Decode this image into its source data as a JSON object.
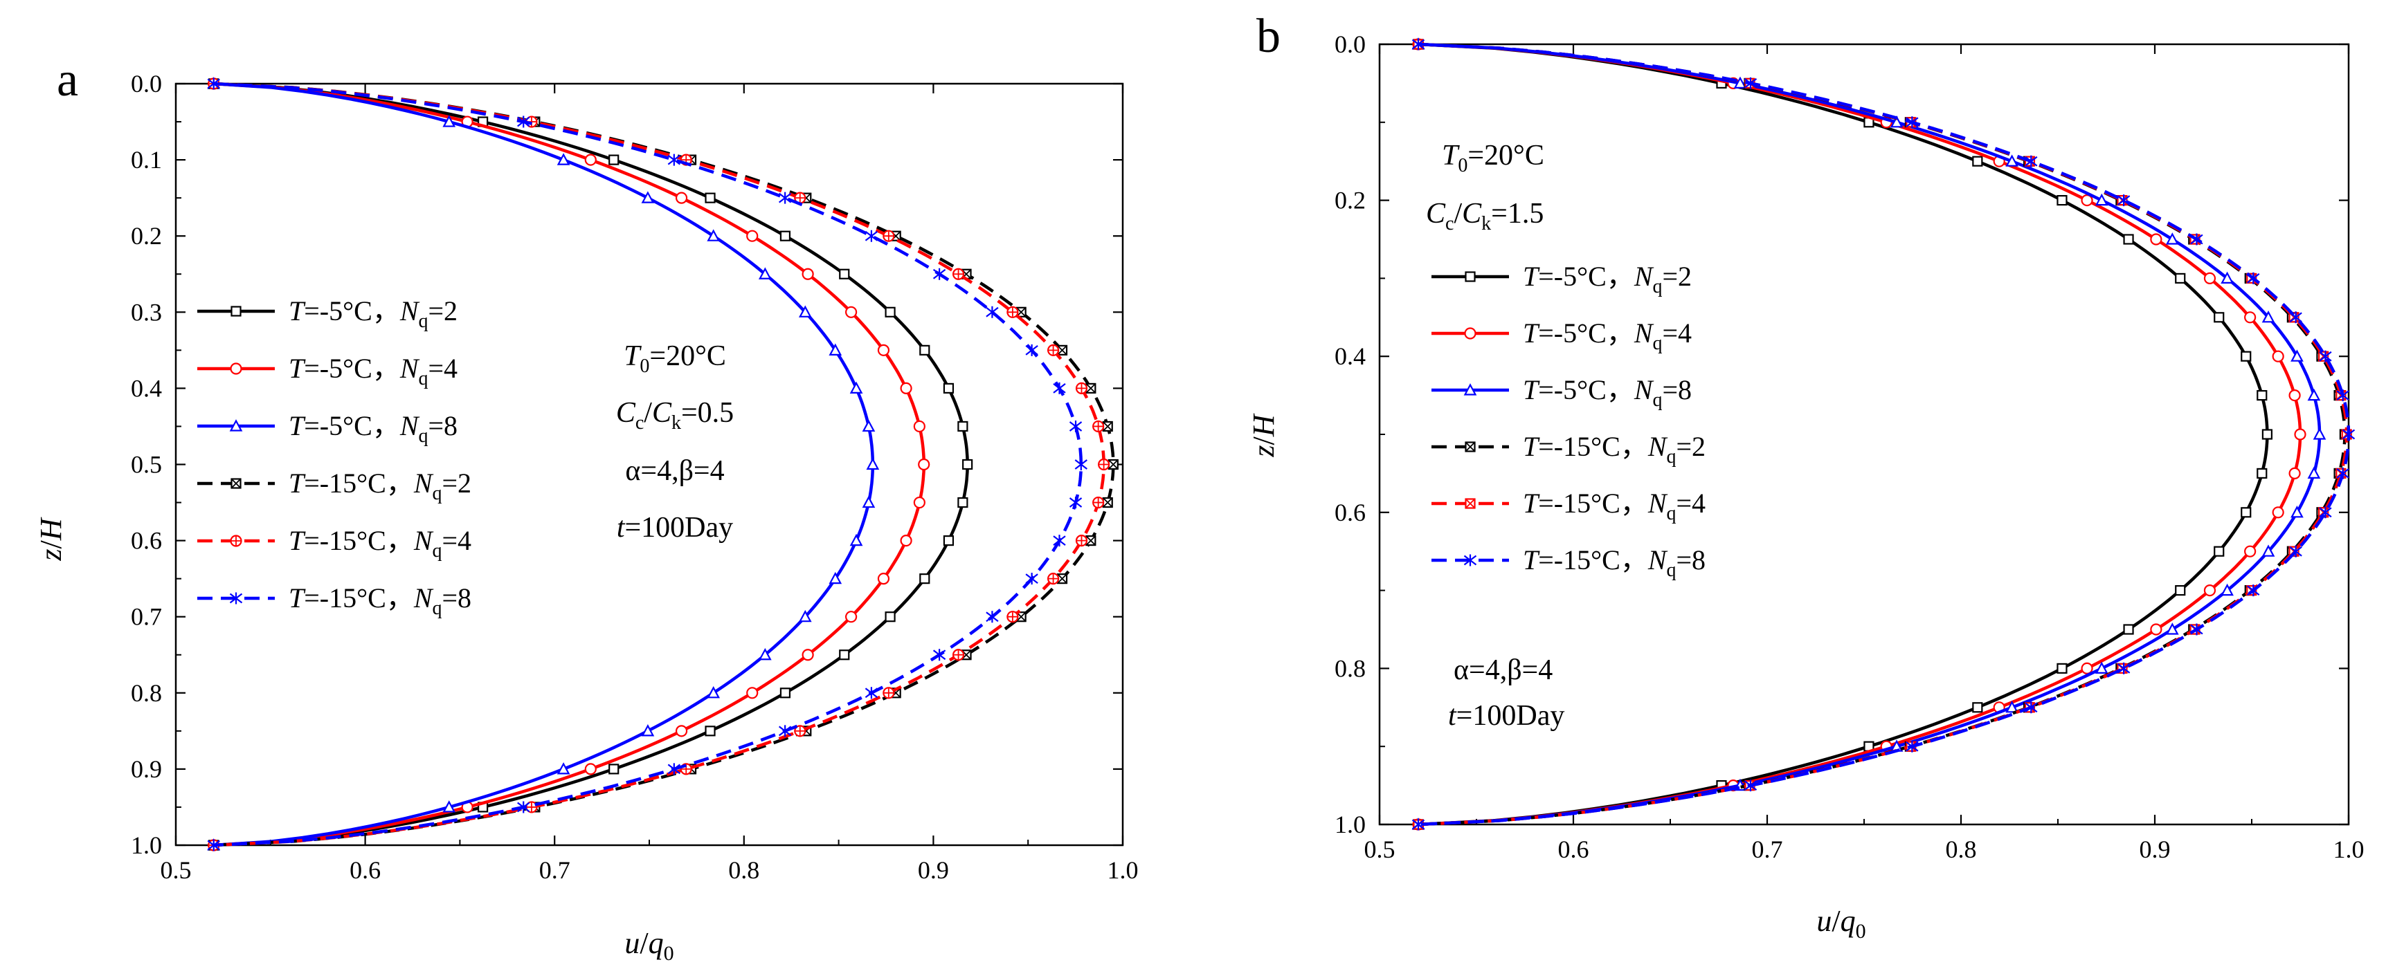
{
  "chart_data": [
    {
      "panel_label": "a",
      "type": "line",
      "orientation": "x-value, y-depth (y axis inverted)",
      "xlabel": {
        "italic": "u",
        "mid": "/",
        "italic2": "q",
        "sub": "0"
      },
      "ylabel": {
        "italic": "z",
        "mid": "/",
        "italic2": "H"
      },
      "xlim": [
        0.5,
        1.0
      ],
      "ylim": [
        0.0,
        1.0
      ],
      "xticks": [
        "0.5",
        "0.6",
        "0.7",
        "0.8",
        "0.9",
        "1.0"
      ],
      "yticks": [
        "0.0",
        "0.1",
        "0.2",
        "0.3",
        "0.4",
        "0.5",
        "0.6",
        "0.7",
        "0.8",
        "0.9",
        "1.0"
      ],
      "profile": {
        "u_min": 0.52,
        "z_points": [
          0,
          0.05,
          0.1,
          0.15,
          0.2,
          0.25,
          0.3,
          0.35,
          0.4,
          0.45,
          0.5,
          0.55,
          0.6,
          0.65,
          0.7,
          0.75,
          0.8,
          0.85,
          0.9,
          0.95,
          1.0
        ]
      },
      "series": [
        {
          "name": "T=-5°C, Nq=2",
          "label": {
            "t": "T",
            "eq": "=-5°C，",
            "n": "N",
            "sub": "q",
            "tail": "=2"
          },
          "color": "#000000",
          "dash": "solid",
          "marker": "square",
          "u_max": 0.918
        },
        {
          "name": "T=-5°C, Nq=4",
          "label": {
            "t": "T",
            "eq": "=-5°C，",
            "n": "N",
            "sub": "q",
            "tail": "=4"
          },
          "color": "#ff0000",
          "dash": "solid",
          "marker": "circle",
          "u_max": 0.895
        },
        {
          "name": "T=-5°C, Nq=8",
          "label": {
            "t": "T",
            "eq": "=-5°C，",
            "n": "N",
            "sub": "q",
            "tail": "=8"
          },
          "color": "#0000ff",
          "dash": "solid",
          "marker": "triangle",
          "u_max": 0.868
        },
        {
          "name": "T=-15°C, Nq=2",
          "label": {
            "t": "T",
            "eq": "=-15°C，",
            "n": "N",
            "sub": "q",
            "tail": "=2"
          },
          "color": "#000000",
          "dash": "dashed",
          "marker": "boxx",
          "u_max": 0.995
        },
        {
          "name": "T=-15°C, Nq=4",
          "label": {
            "t": "T",
            "eq": "=-15°C，",
            "n": "N",
            "sub": "q",
            "tail": "=4"
          },
          "color": "#ff0000",
          "dash": "dashed",
          "marker": "circleplus",
          "u_max": 0.99
        },
        {
          "name": "T=-15°C, Nq=8",
          "label": {
            "t": "T",
            "eq": "=-15°C，",
            "n": "N",
            "sub": "q",
            "tail": "=8"
          },
          "color": "#0000ff",
          "dash": "dashed",
          "marker": "star",
          "u_max": 0.978
        }
      ],
      "annotations": {
        "t0": {
          "italic": "T",
          "sub": "0",
          "tail": "=20°C"
        },
        "ratio": {
          "c1": "C",
          "s1": "c",
          "slash": "/",
          "c2": "C",
          "s2": "k",
          "tail": "=0.5"
        },
        "ab": "α=4,β=4",
        "time": {
          "italic": "t",
          "tail": "=100Day"
        }
      },
      "legend_position": "center-left"
    },
    {
      "panel_label": "b",
      "type": "line",
      "orientation": "x-value, y-depth (y axis inverted)",
      "xlabel": {
        "italic": "u",
        "mid": "/",
        "italic2": "q",
        "sub": "0"
      },
      "ylabel": {
        "italic": "z",
        "mid": "/",
        "italic2": "H"
      },
      "xlim": [
        0.5,
        1.0
      ],
      "ylim": [
        0.0,
        1.0
      ],
      "xticks": [
        "0.5",
        "0.6",
        "0.7",
        "0.8",
        "0.9",
        "1.0"
      ],
      "yticks": [
        "0.0",
        "0.2",
        "0.4",
        "0.6",
        "0.8",
        "1.0"
      ],
      "profile": {
        "u_min": 0.52,
        "z_points": [
          0,
          0.05,
          0.1,
          0.15,
          0.2,
          0.25,
          0.3,
          0.35,
          0.4,
          0.45,
          0.5,
          0.55,
          0.6,
          0.65,
          0.7,
          0.75,
          0.8,
          0.85,
          0.9,
          0.95,
          1.0
        ]
      },
      "series": [
        {
          "name": "T=-5°C, Nq=2",
          "label": {
            "t": "T",
            "eq": "=-5°C，",
            "n": "N",
            "sub": "q",
            "tail": "=2"
          },
          "color": "#000000",
          "dash": "solid",
          "marker": "square",
          "u_max": 0.958
        },
        {
          "name": "T=-5°C, Nq=4",
          "label": {
            "t": "T",
            "eq": "=-5°C，",
            "n": "N",
            "sub": "q",
            "tail": "=4"
          },
          "color": "#ff0000",
          "dash": "solid",
          "marker": "circle",
          "u_max": 0.975
        },
        {
          "name": "T=-5°C, Nq=8",
          "label": {
            "t": "T",
            "eq": "=-5°C，",
            "n": "N",
            "sub": "q",
            "tail": "=8"
          },
          "color": "#0000ff",
          "dash": "solid",
          "marker": "triangle",
          "u_max": 0.985
        },
        {
          "name": "T=-15°C, Nq=2",
          "label": {
            "t": "T",
            "eq": "=-15°C，",
            "n": "N",
            "sub": "q",
            "tail": "=2"
          },
          "color": "#000000",
          "dash": "dashed",
          "marker": "boxx",
          "u_max": 0.998
        },
        {
          "name": "T=-15°C, Nq=4",
          "label": {
            "t": "T",
            "eq": "=-15°C，",
            "n": "N",
            "sub": "q",
            "tail": "=4"
          },
          "color": "#ff0000",
          "dash": "dashed",
          "marker": "boxx",
          "u_max": 0.999
        },
        {
          "name": "T=-15°C, Nq=8",
          "label": {
            "t": "T",
            "eq": "=-15°C，",
            "n": "N",
            "sub": "q",
            "tail": "=8"
          },
          "color": "#0000ff",
          "dash": "dashed",
          "marker": "star",
          "u_max": 1.0
        }
      ],
      "annotations": {
        "t0": {
          "italic": "T",
          "sub": "0",
          "tail": "=20°C"
        },
        "ratio": {
          "c1": "C",
          "s1": "c",
          "slash": "/",
          "c2": "C",
          "s2": "k",
          "tail": "=1.5"
        },
        "ab": "α=4,β=4",
        "time": {
          "italic": "t",
          "tail": "=100Day"
        }
      },
      "legend_position": "upper-left"
    }
  ]
}
